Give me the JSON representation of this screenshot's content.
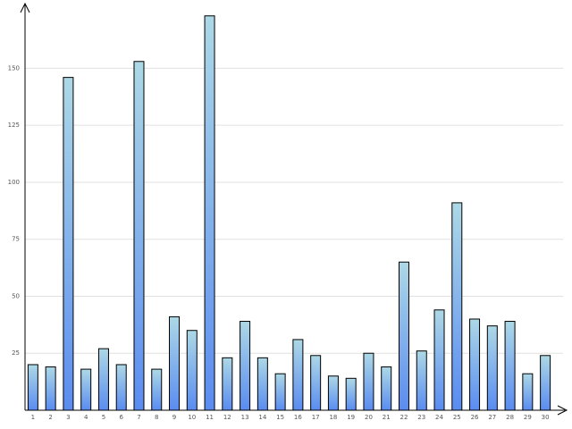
{
  "chart_data": {
    "type": "bar",
    "categories": [
      "1",
      "2",
      "3",
      "4",
      "5",
      "6",
      "7",
      "8",
      "9",
      "10",
      "11",
      "12",
      "13",
      "14",
      "15",
      "16",
      "17",
      "18",
      "19",
      "20",
      "21",
      "22",
      "23",
      "24",
      "25",
      "26",
      "27",
      "28",
      "29",
      "30"
    ],
    "values": [
      20,
      19,
      146,
      18,
      27,
      20,
      153,
      18,
      41,
      35,
      173,
      23,
      39,
      23,
      16,
      31,
      24,
      15,
      14,
      25,
      19,
      65,
      26,
      44,
      91,
      40,
      37,
      39,
      16,
      24
    ],
    "colors": [
      "#add8e6",
      "#5a8cf0"
    ],
    "ylim": [
      0,
      178
    ],
    "yticks": [
      25,
      50,
      75,
      100,
      125,
      150
    ],
    "grid": true
  }
}
